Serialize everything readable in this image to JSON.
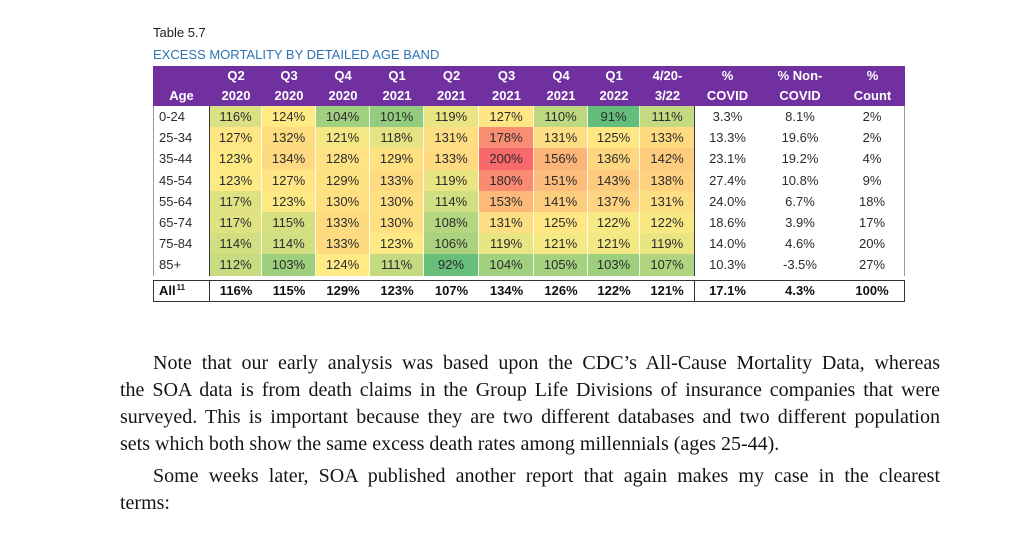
{
  "caption": {
    "number": "Table 5.7",
    "title": "EXCESS MORTALITY BY DETAILED AGE BAND"
  },
  "table": {
    "header": {
      "age": "Age",
      "columns": [
        {
          "line1": "Q2",
          "line2": "2020"
        },
        {
          "line1": "Q3",
          "line2": "2020"
        },
        {
          "line1": "Q4",
          "line2": "2020"
        },
        {
          "line1": "Q1",
          "line2": "2021"
        },
        {
          "line1": "Q2",
          "line2": "2021"
        },
        {
          "line1": "Q3",
          "line2": "2021"
        },
        {
          "line1": "Q4",
          "line2": "2021"
        },
        {
          "line1": "Q1",
          "line2": "2022"
        },
        {
          "line1": "4/20-",
          "line2": "3/22"
        },
        {
          "line1": "%",
          "line2": "COVID"
        },
        {
          "line1": "% Non-",
          "line2": "COVID"
        },
        {
          "line1": "%",
          "line2": "Count"
        }
      ]
    },
    "rows": [
      {
        "age": "0-24",
        "cells": [
          "116%",
          "124%",
          "104%",
          "101%",
          "119%",
          "127%",
          "110%",
          "91%",
          "111%",
          "3.3%",
          "8.1%",
          "2%"
        ]
      },
      {
        "age": "25-34",
        "cells": [
          "127%",
          "132%",
          "121%",
          "118%",
          "131%",
          "178%",
          "131%",
          "125%",
          "133%",
          "13.3%",
          "19.6%",
          "2%"
        ]
      },
      {
        "age": "35-44",
        "cells": [
          "123%",
          "134%",
          "128%",
          "129%",
          "133%",
          "200%",
          "156%",
          "136%",
          "142%",
          "23.1%",
          "19.2%",
          "4%"
        ]
      },
      {
        "age": "45-54",
        "cells": [
          "123%",
          "127%",
          "129%",
          "133%",
          "119%",
          "180%",
          "151%",
          "143%",
          "138%",
          "27.4%",
          "10.8%",
          "9%"
        ]
      },
      {
        "age": "55-64",
        "cells": [
          "117%",
          "123%",
          "130%",
          "130%",
          "114%",
          "153%",
          "141%",
          "137%",
          "131%",
          "24.0%",
          "6.7%",
          "18%"
        ]
      },
      {
        "age": "65-74",
        "cells": [
          "117%",
          "115%",
          "133%",
          "130%",
          "108%",
          "131%",
          "125%",
          "122%",
          "122%",
          "18.6%",
          "3.9%",
          "17%"
        ]
      },
      {
        "age": "75-84",
        "cells": [
          "114%",
          "114%",
          "133%",
          "123%",
          "106%",
          "119%",
          "121%",
          "121%",
          "119%",
          "14.0%",
          "4.6%",
          "20%"
        ]
      },
      {
        "age": "85+",
        "cells": [
          "112%",
          "103%",
          "124%",
          "111%",
          "92%",
          "104%",
          "105%",
          "103%",
          "107%",
          "10.3%",
          "-3.5%",
          "27%"
        ]
      }
    ],
    "total": {
      "label": "All",
      "footnote": "11",
      "cells": [
        "116%",
        "115%",
        "129%",
        "123%",
        "107%",
        "134%",
        "126%",
        "122%",
        "121%",
        "17.1%",
        "4.3%",
        "100%"
      ]
    }
  },
  "theme": {
    "header_bg": "#7030a0",
    "header_text": "#ffffff",
    "caption_title": "#2e74b5",
    "heat_low": "#63be7b",
    "heat_mid": "#ffeb84",
    "heat_high": "#f8696b"
  },
  "body": {
    "paragraphs": [
      {
        "lines": [
          "Note that our early analysis was based upon the CDC’s All-Cause Mortality Data, whereas",
          "the SOA data is from death claims in the Group Life Divisions of insurance companies that were",
          "surveyed. This is important because they are two different databases and two different population",
          "sets which both show the same excess death rates among millennials (ages 25-44)."
        ]
      },
      {
        "lines": [
          "Some weeks later, SOA published another report that again makes my case in the clearest",
          "terms:"
        ]
      }
    ]
  }
}
